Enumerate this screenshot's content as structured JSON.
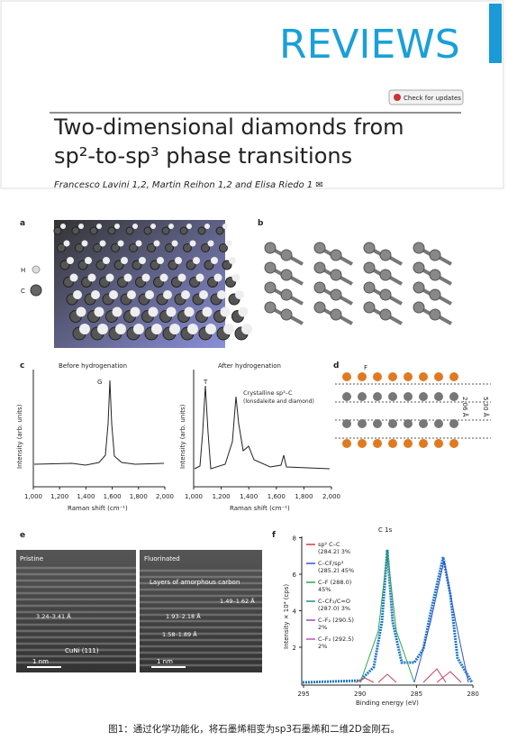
{
  "header": {
    "journal": "REVIEWS",
    "badge": "Check for updates",
    "title_line1": "Two-dimensional diamonds from",
    "title_line2": "sp²-to-sp³ phase transitions",
    "authors": "Francesco Lavini  1,2, Martin Reihon  1,2 and Elisa Riedo  1 ✉"
  },
  "figure": {
    "a": {
      "label": "a",
      "h": "H",
      "c": "C"
    },
    "b": {
      "label": "b"
    },
    "c": {
      "label": "c",
      "left_title": "Before hydrogenation",
      "right_title": "After hydrogenation",
      "g": "G",
      "t": "T",
      "note1": "Crystalline sp³–C",
      "note2": "(lonsdaleite and diamond)",
      "ylabel": "Intensity (arb. units)",
      "xlabel": "Raman shift (cm⁻¹)",
      "xticks": [
        "1,000",
        "1,200",
        "1,400",
        "1,600",
        "1,800",
        "2,000"
      ]
    },
    "d": {
      "label": "d",
      "f": "F",
      "inner": "2.06 Å",
      "outer": "5.30 Å"
    },
    "e": {
      "label": "e",
      "pristine": "Pristine",
      "fluorinated": "Fluorinated",
      "layers": "Layers of amorphous carbon",
      "d1": "3.24–3.41 Å",
      "d2": "1.93–2.18 Å",
      "d3": "1.58–1.89 Å",
      "d4": "1.49–1.62 Å",
      "substrate": "CuNi (111)",
      "scale_left": "1 nm",
      "scale_right": "1 nm"
    },
    "f": {
      "label": "f",
      "title": "C 1s",
      "ylabel": "Intensity × 10⁴ (cps)",
      "xlabel": "Binding energy (eV)",
      "yticks": [
        "2",
        "4",
        "6",
        "8"
      ],
      "xticks": [
        "295",
        "290",
        "285",
        "280"
      ],
      "legend": [
        [
          "sp² C–C",
          "(284.2) 3%"
        ],
        [
          "C–CF/sp³",
          "(285.2) 45%"
        ],
        [
          "C–F (288.0)",
          "45%"
        ],
        [
          "C–CF₂/C=O",
          "(287.0) 3%"
        ],
        [
          "C–F₂ (290.5)",
          "2%"
        ],
        [
          "C–F₃ (292.5)",
          "2%"
        ]
      ]
    }
  },
  "caption": "图1：通过化学功能化，将石墨烯相变为sp3石墨烯和二维2D金刚石。"
}
